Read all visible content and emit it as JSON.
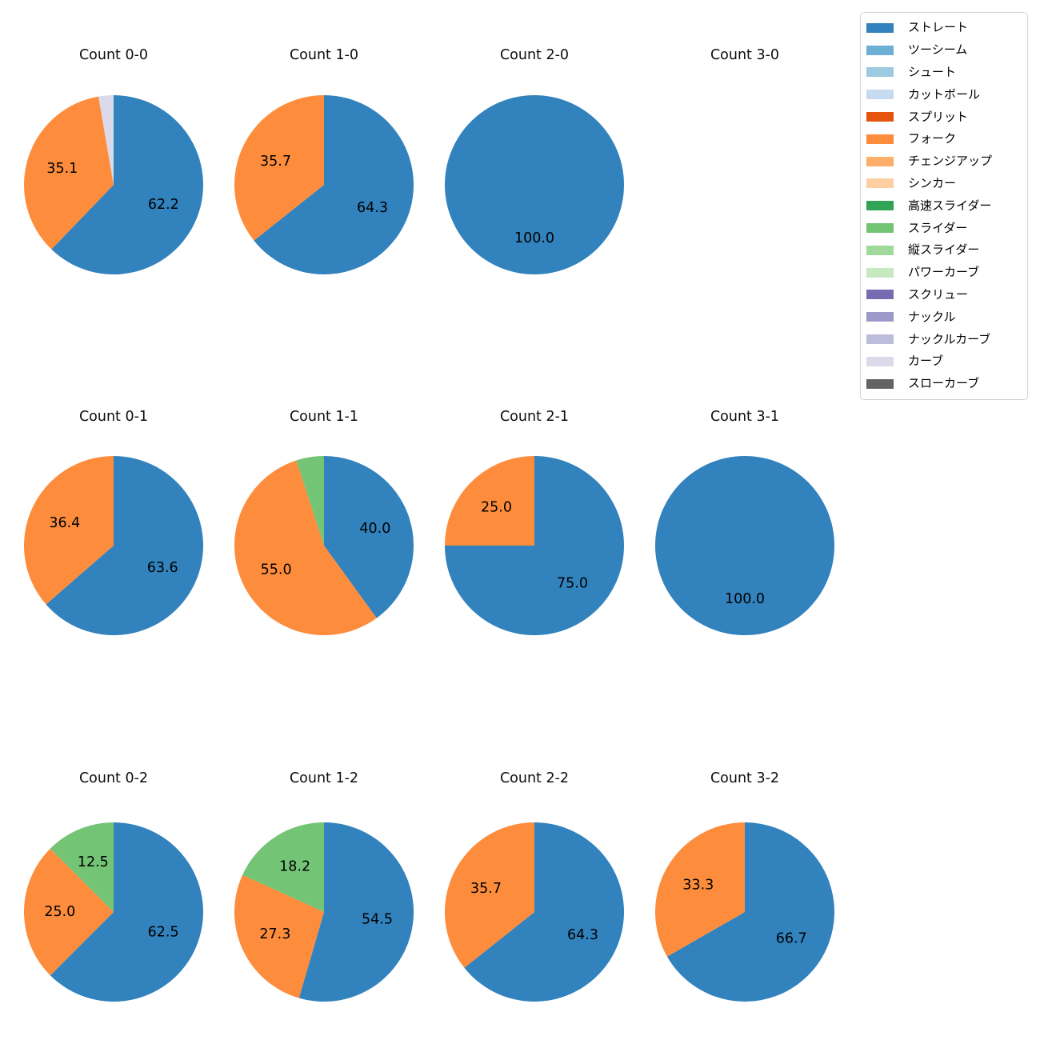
{
  "chart_data": {
    "type": "pie",
    "grid": {
      "rows": 3,
      "cols": 4
    },
    "start_angle_deg": 90,
    "direction": "clockwise",
    "pct_label_distance": 0.6,
    "pct_labels_hidden_below": 10,
    "legend_position": "upper right",
    "charts": [
      {
        "title": "Count 0-0",
        "slices": [
          {
            "name": "ストレート",
            "value": 62.2,
            "label": "62.2",
            "color": "#3182bd"
          },
          {
            "name": "フォーク",
            "value": 35.1,
            "label": "35.1",
            "color": "#fd8d3c"
          },
          {
            "name": "カーブ",
            "value": 2.7,
            "label": "",
            "color": "#dadaeb"
          }
        ]
      },
      {
        "title": "Count 1-0",
        "slices": [
          {
            "name": "ストレート",
            "value": 64.3,
            "label": "64.3",
            "color": "#3182bd"
          },
          {
            "name": "フォーク",
            "value": 35.7,
            "label": "35.7",
            "color": "#fd8d3c"
          }
        ]
      },
      {
        "title": "Count 2-0",
        "slices": [
          {
            "name": "ストレート",
            "value": 100.0,
            "label": "100.0",
            "color": "#3182bd"
          }
        ]
      },
      {
        "title": "Count 3-0",
        "slices": []
      },
      {
        "title": "Count 0-1",
        "slices": [
          {
            "name": "ストレート",
            "value": 63.6,
            "label": "63.6",
            "color": "#3182bd"
          },
          {
            "name": "フォーク",
            "value": 36.4,
            "label": "36.4",
            "color": "#fd8d3c"
          }
        ]
      },
      {
        "title": "Count 1-1",
        "slices": [
          {
            "name": "ストレート",
            "value": 40.0,
            "label": "40.0",
            "color": "#3182bd"
          },
          {
            "name": "フォーク",
            "value": 55.0,
            "label": "55.0",
            "color": "#fd8d3c"
          },
          {
            "name": "スライダー",
            "value": 5.0,
            "label": "",
            "color": "#74c476"
          }
        ]
      },
      {
        "title": "Count 2-1",
        "slices": [
          {
            "name": "ストレート",
            "value": 75.0,
            "label": "75.0",
            "color": "#3182bd"
          },
          {
            "name": "フォーク",
            "value": 25.0,
            "label": "25.0",
            "color": "#fd8d3c"
          }
        ]
      },
      {
        "title": "Count 3-1",
        "slices": [
          {
            "name": "ストレート",
            "value": 100.0,
            "label": "100.0",
            "color": "#3182bd"
          }
        ]
      },
      {
        "title": "Count 0-2",
        "slices": [
          {
            "name": "ストレート",
            "value": 62.5,
            "label": "62.5",
            "color": "#3182bd"
          },
          {
            "name": "フォーク",
            "value": 25.0,
            "label": "25.0",
            "color": "#fd8d3c"
          },
          {
            "name": "スライダー",
            "value": 12.5,
            "label": "12.5",
            "color": "#74c476"
          }
        ]
      },
      {
        "title": "Count 1-2",
        "slices": [
          {
            "name": "ストレート",
            "value": 54.5,
            "label": "54.5",
            "color": "#3182bd"
          },
          {
            "name": "フォーク",
            "value": 27.3,
            "label": "27.3",
            "color": "#fd8d3c"
          },
          {
            "name": "スライダー",
            "value": 18.2,
            "label": "18.2",
            "color": "#74c476"
          }
        ]
      },
      {
        "title": "Count 2-2",
        "slices": [
          {
            "name": "ストレート",
            "value": 64.3,
            "label": "64.3",
            "color": "#3182bd"
          },
          {
            "name": "フォーク",
            "value": 35.7,
            "label": "35.7",
            "color": "#fd8d3c"
          }
        ]
      },
      {
        "title": "Count 3-2",
        "slices": [
          {
            "name": "ストレート",
            "value": 66.7,
            "label": "66.7",
            "color": "#3182bd"
          },
          {
            "name": "フォーク",
            "value": 33.3,
            "label": "33.3",
            "color": "#fd8d3c"
          }
        ]
      }
    ],
    "legend_items": [
      {
        "label": "ストレート",
        "color": "#3182bd"
      },
      {
        "label": "ツーシーム",
        "color": "#6baed6"
      },
      {
        "label": "シュート",
        "color": "#9ecae1"
      },
      {
        "label": "カットボール",
        "color": "#c6dbef"
      },
      {
        "label": "スプリット",
        "color": "#e6550d"
      },
      {
        "label": "フォーク",
        "color": "#fd8d3c"
      },
      {
        "label": "チェンジアップ",
        "color": "#fdae6b"
      },
      {
        "label": "シンカー",
        "color": "#fdd0a2"
      },
      {
        "label": "高速スライダー",
        "color": "#31a354"
      },
      {
        "label": "スライダー",
        "color": "#74c476"
      },
      {
        "label": "縦スライダー",
        "color": "#a1d99b"
      },
      {
        "label": "パワーカーブ",
        "color": "#c7e9c0"
      },
      {
        "label": "スクリュー",
        "color": "#756bb1"
      },
      {
        "label": "ナックル",
        "color": "#9e9ac8"
      },
      {
        "label": "ナックルカーブ",
        "color": "#bcbddc"
      },
      {
        "label": "カーブ",
        "color": "#dadaeb"
      },
      {
        "label": "スローカーブ",
        "color": "#636363"
      }
    ]
  }
}
